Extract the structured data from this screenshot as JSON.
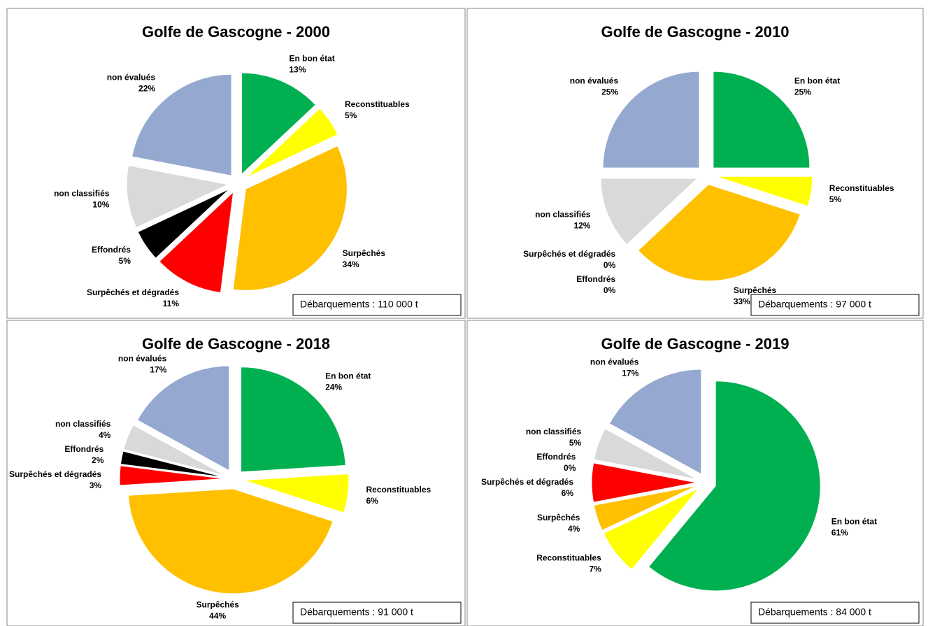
{
  "chart_data": [
    {
      "type": "pie",
      "title": "Golfe de Gascogne - 2000",
      "categories": [
        "En bon état",
        "Reconstituables",
        "Surpêchés",
        "Surpêchés et dégradés",
        "Effondrés",
        "non classifiés",
        "non évalués"
      ],
      "values": [
        13,
        5,
        34,
        11,
        5,
        10,
        22
      ],
      "value_labels": [
        "13%",
        "5%",
        "34%",
        "11%",
        "5%",
        "10%",
        "22%"
      ],
      "colors": [
        "#00b050",
        "#ffff00",
        "#ffc000",
        "#ff0000",
        "#000000",
        "#d9d9d9",
        "#95a9d0"
      ],
      "annotation": "Débarquements : 110 000 t"
    },
    {
      "type": "pie",
      "title": "Golfe de Gascogne - 2010",
      "categories": [
        "En bon état",
        "Reconstituables",
        "Surpêchés",
        "Surpêchés et dégradés",
        "Effondrés",
        "non classifiés",
        "non évalués"
      ],
      "values": [
        25,
        5,
        33,
        0,
        0,
        12,
        25
      ],
      "value_labels": [
        "25%",
        "5%",
        "33%",
        "0%",
        "0%",
        "12%",
        "25%"
      ],
      "colors": [
        "#00b050",
        "#ffff00",
        "#ffc000",
        "#ff0000",
        "#000000",
        "#d9d9d9",
        "#95a9d0"
      ],
      "annotation": "Débarquements : 97 000 t"
    },
    {
      "type": "pie",
      "title": "Golfe de Gascogne - 2018",
      "categories": [
        "En bon état",
        "Reconstituables",
        "Surpêchés",
        "Surpêchés et dégradés",
        "Effondrés",
        "non classifiés",
        "non évalués"
      ],
      "values": [
        24,
        6,
        44,
        3,
        2,
        4,
        17
      ],
      "value_labels": [
        "24%",
        "6%",
        "44%",
        "3%",
        "2%",
        "4%",
        "17%"
      ],
      "colors": [
        "#00b050",
        "#ffff00",
        "#ffc000",
        "#ff0000",
        "#000000",
        "#d9d9d9",
        "#95a9d0"
      ],
      "annotation": "Débarquements : 91 000 t"
    },
    {
      "type": "pie",
      "title": "Golfe de Gascogne - 2019",
      "categories": [
        "En bon état",
        "Reconstituables",
        "Surpêchés",
        "Surpêchés et dégradés",
        "Effondrés",
        "non classifiés",
        "non évalués"
      ],
      "values": [
        61,
        7,
        4,
        6,
        0,
        5,
        17
      ],
      "value_labels": [
        "61%",
        "7%",
        "4%",
        "6%",
        "0%",
        "5%",
        "17%"
      ],
      "colors": [
        "#00b050",
        "#ffff00",
        "#ffc000",
        "#ff0000",
        "#000000",
        "#d9d9d9",
        "#95a9d0"
      ],
      "annotation": "Débarquements : 84 000 t"
    }
  ]
}
